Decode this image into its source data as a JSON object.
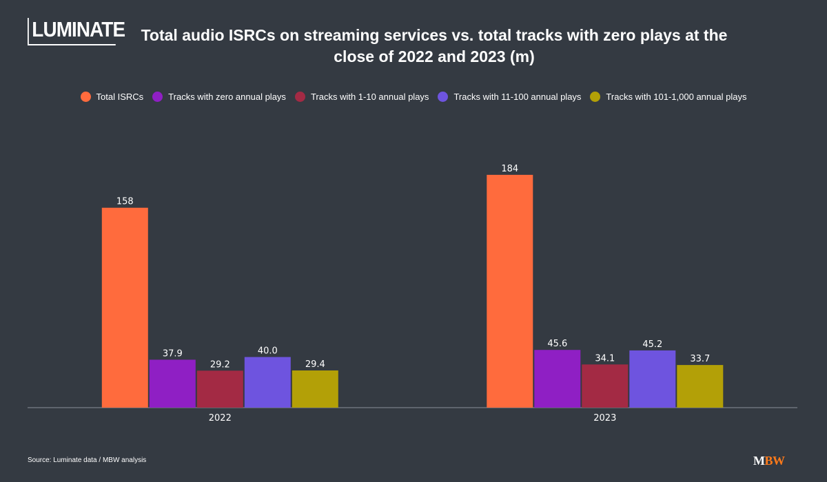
{
  "logo": {
    "text": "LUMINATE"
  },
  "chart_data": {
    "type": "bar",
    "title": "Total audio ISRCs on streaming services vs. total tracks with zero plays at the close of 2022 and 2023 (m)",
    "xlabel": "",
    "ylabel": "",
    "categories": [
      "2022",
      "2023"
    ],
    "ylim": [
      0,
      200
    ],
    "grid": false,
    "legend": "top-center",
    "series": [
      {
        "name": "Total ISRCs",
        "color": "#ff6b3d",
        "values": [
          158,
          184
        ],
        "labels": [
          "158",
          "184"
        ]
      },
      {
        "name": "Tracks with zero annual plays",
        "color": "#8f1fc4",
        "values": [
          37.9,
          45.6
        ],
        "labels": [
          "37.9",
          "45.6"
        ]
      },
      {
        "name": "Tracks with 1-10 annual plays",
        "color": "#a32a44",
        "values": [
          29.2,
          34.1
        ],
        "labels": [
          "29.2",
          "34.1"
        ]
      },
      {
        "name": "Tracks with 11-100 annual plays",
        "color": "#6e54df",
        "values": [
          40.0,
          45.2
        ],
        "labels": [
          "40.0",
          "45.2"
        ]
      },
      {
        "name": "Tracks with 101-1,000 annual plays",
        "color": "#b3a007",
        "values": [
          29.4,
          33.7
        ],
        "labels": [
          "29.4",
          "33.7"
        ]
      }
    ]
  },
  "footer": {
    "source": "Source: Luminate data / MBW analysis",
    "brand_m": "M",
    "brand_bw": "BW"
  }
}
